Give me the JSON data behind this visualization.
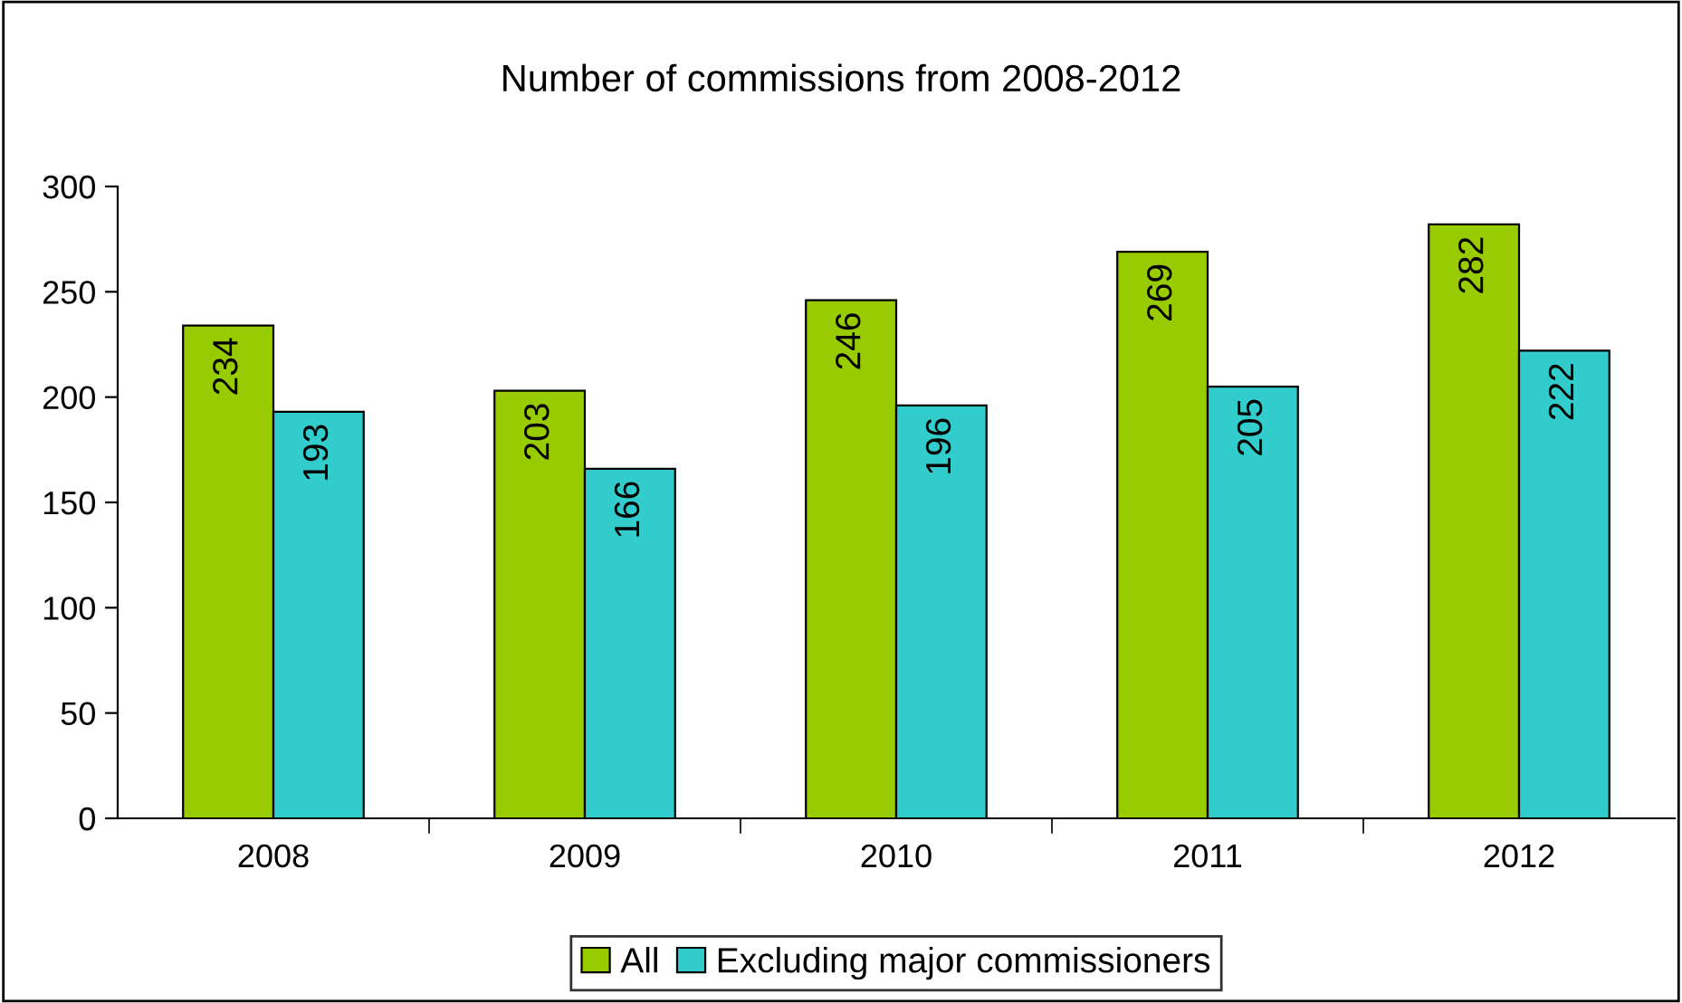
{
  "chart_data": {
    "type": "bar",
    "title": "Number of commissions from 2008-2012",
    "categories": [
      "2008",
      "2009",
      "2010",
      "2011",
      "2012"
    ],
    "series": [
      {
        "name": "All",
        "color": "#99cc00",
        "values": [
          234,
          203,
          246,
          269,
          282
        ]
      },
      {
        "name": "Excluding major commissioners",
        "color": "#33cccc",
        "values": [
          193,
          166,
          196,
          205,
          222
        ]
      }
    ],
    "ylim": [
      0,
      300
    ],
    "yticks": [
      0,
      50,
      100,
      150,
      200,
      250,
      300
    ],
    "grid": false,
    "legend": "bottom",
    "data_labels": true
  }
}
